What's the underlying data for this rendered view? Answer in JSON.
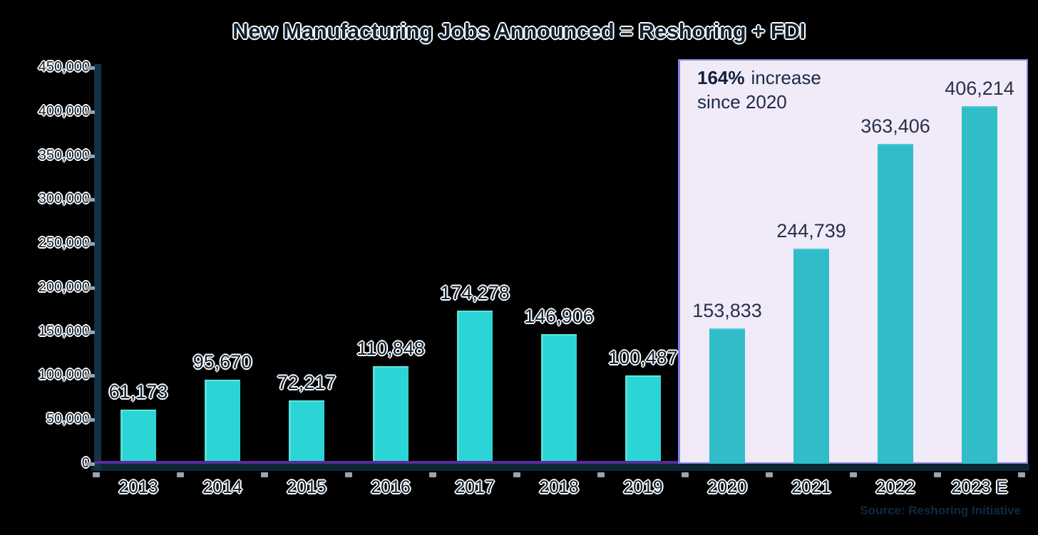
{
  "chart_data": {
    "type": "bar",
    "title": "New Manufacturing Jobs Announced = Reshoring + FDI",
    "categories": [
      "2013",
      "2014",
      "2015",
      "2016",
      "2017",
      "2018",
      "2019",
      "2020",
      "2021",
      "2022",
      "2023 E"
    ],
    "values": [
      61173,
      95670,
      72217,
      110848,
      174278,
      146906,
      100487,
      153833,
      244739,
      363406,
      406214
    ],
    "value_labels": [
      "61,173",
      "95,670",
      "72,217",
      "110,848",
      "174,278",
      "146,906",
      "100,487",
      "153,833",
      "244,739",
      "363,406",
      "406,214"
    ],
    "xlabel": "",
    "ylabel": "",
    "ylim": [
      0,
      450000
    ],
    "ytick_step": 50000,
    "ytick_labels": [
      "0",
      "50,000",
      "100,000",
      "150,000",
      "200,000",
      "250,000",
      "300,000",
      "350,000",
      "400,000",
      "450,000"
    ],
    "grid": false,
    "legend": "none",
    "highlight": {
      "from_category": "2020",
      "to_category": "2023 E",
      "annotation_bold": "164%",
      "annotation_text": "increase",
      "annotation_line2": "since 2020",
      "background": "#F1EAF8",
      "border": "#8986DF"
    },
    "colors": {
      "bar": "#2BD5D5",
      "bar_in_highlight": "#31BDC8",
      "baseline_accent": "#5A2B9B",
      "axis": "#123245",
      "page_background": "#000000"
    },
    "source": "Source: Reshoring Initiative"
  }
}
